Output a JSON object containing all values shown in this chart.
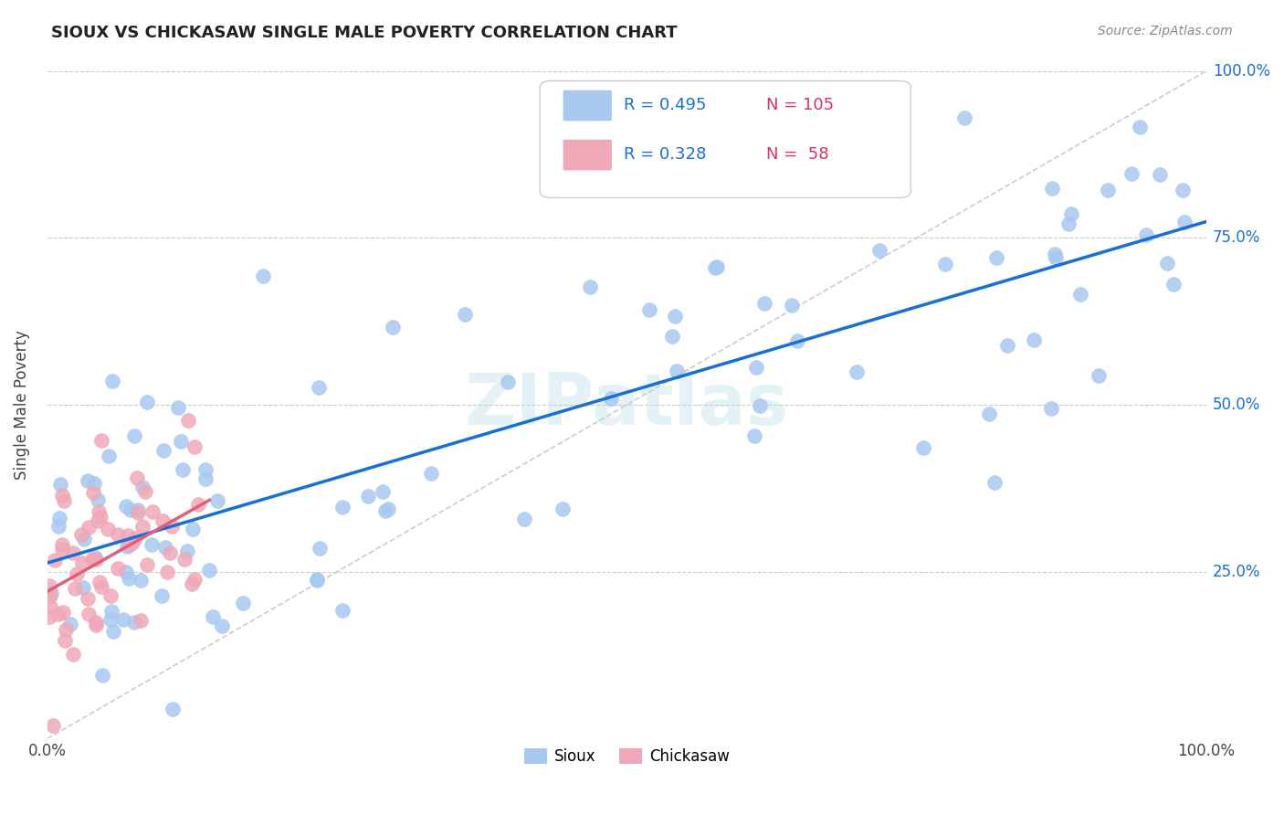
{
  "title": "SIOUX VS CHICKASAW SINGLE MALE POVERTY CORRELATION CHART",
  "source": "Source: ZipAtlas.com",
  "ylabel": "Single Male Poverty",
  "bottom_legend": [
    "Sioux",
    "Chickasaw"
  ],
  "sioux_R": 0.495,
  "sioux_N": 105,
  "chickasaw_R": 0.328,
  "chickasaw_N": 58,
  "sioux_color": "#a8c8f0",
  "chickasaw_color": "#f0a8b8",
  "sioux_line_color": "#1a6fd4",
  "chickasaw_line_color": "#e0607a",
  "diagonal_color": "#cccccc",
  "background_color": "#ffffff",
  "watermark": "ZIPatlas",
  "ytick_labels": [
    "25.0%",
    "50.0%",
    "75.0%",
    "100.0%"
  ],
  "ytick_vals": [
    0.25,
    0.5,
    0.75,
    1.0
  ],
  "xlim": [
    0.0,
    1.0
  ],
  "ylim": [
    0.0,
    1.0
  ]
}
